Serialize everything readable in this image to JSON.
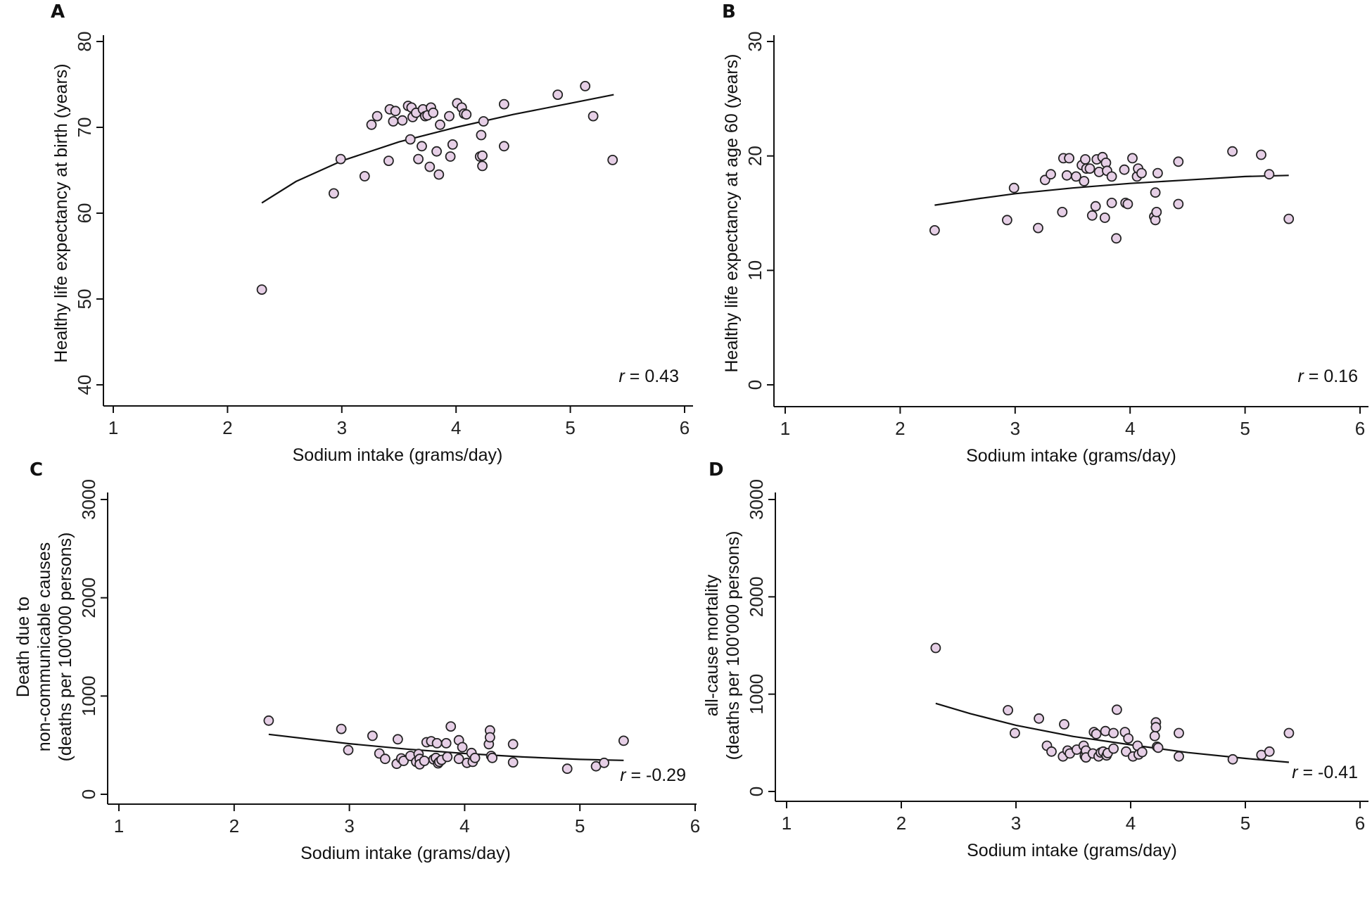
{
  "figure": {
    "panel_letters": [
      "A",
      "B",
      "C",
      "D"
    ]
  },
  "chart_data": [
    {
      "id": "A",
      "type": "scatter",
      "title": "",
      "panel_label": "A",
      "xlabel": "Sodium intake (grams/day)",
      "ylabel": [
        "Healthy life expectancy at birth (years)"
      ],
      "xlim": [
        1,
        6
      ],
      "ylim": [
        40,
        80
      ],
      "xticks": [
        1,
        2,
        3,
        4,
        5,
        6
      ],
      "yticks": [
        40,
        50,
        60,
        70,
        80
      ],
      "grid": false,
      "annotation": {
        "symbol": "r",
        "text": " = 0.43"
      },
      "points": [
        [
          2.3,
          51.1
        ],
        [
          2.93,
          62.3
        ],
        [
          2.99,
          66.3
        ],
        [
          3.2,
          64.3
        ],
        [
          3.26,
          70.3
        ],
        [
          3.31,
          71.3
        ],
        [
          3.41,
          66.1
        ],
        [
          3.42,
          72.1
        ],
        [
          3.45,
          70.7
        ],
        [
          3.47,
          71.9
        ],
        [
          3.53,
          70.8
        ],
        [
          3.58,
          72.5
        ],
        [
          3.6,
          68.6
        ],
        [
          3.61,
          72.3
        ],
        [
          3.62,
          71.2
        ],
        [
          3.65,
          71.7
        ],
        [
          3.67,
          66.3
        ],
        [
          3.7,
          67.8
        ],
        [
          3.71,
          72.1
        ],
        [
          3.73,
          71.3
        ],
        [
          3.75,
          71.4
        ],
        [
          3.77,
          65.4
        ],
        [
          3.78,
          72.3
        ],
        [
          3.8,
          71.7
        ],
        [
          3.83,
          67.2
        ],
        [
          3.85,
          64.5
        ],
        [
          3.86,
          70.3
        ],
        [
          3.94,
          71.3
        ],
        [
          3.95,
          66.6
        ],
        [
          3.97,
          68.0
        ],
        [
          4.01,
          72.8
        ],
        [
          4.05,
          72.3
        ],
        [
          4.07,
          71.6
        ],
        [
          4.09,
          71.5
        ],
        [
          4.21,
          66.6
        ],
        [
          4.22,
          69.1
        ],
        [
          4.23,
          66.7
        ],
        [
          4.23,
          65.5
        ],
        [
          4.24,
          70.7
        ],
        [
          4.42,
          72.7
        ],
        [
          4.42,
          67.8
        ],
        [
          4.89,
          73.8
        ],
        [
          5.13,
          74.8
        ],
        [
          5.2,
          71.3
        ],
        [
          5.37,
          66.2
        ]
      ],
      "fit_line": [
        [
          2.3,
          61.2
        ],
        [
          2.6,
          63.7
        ],
        [
          3.0,
          66.1
        ],
        [
          3.5,
          68.3
        ],
        [
          4.0,
          70.0
        ],
        [
          4.5,
          71.5
        ],
        [
          5.0,
          72.8
        ],
        [
          5.38,
          73.8
        ]
      ]
    },
    {
      "id": "B",
      "type": "scatter",
      "title": "",
      "panel_label": "B",
      "xlabel": "Sodium intake (grams/day)",
      "ylabel": [
        "Healthy life expectancy at age 60 (years)"
      ],
      "xlim": [
        1,
        6
      ],
      "ylim": [
        0,
        30
      ],
      "xticks": [
        1,
        2,
        3,
        4,
        5,
        6
      ],
      "yticks": [
        0,
        10,
        20,
        30
      ],
      "grid": false,
      "annotation": {
        "symbol": "r",
        "text": " = 0.16"
      },
      "points": [
        [
          2.3,
          13.5
        ],
        [
          2.93,
          14.4
        ],
        [
          2.99,
          17.2
        ],
        [
          3.2,
          13.7
        ],
        [
          3.26,
          17.9
        ],
        [
          3.31,
          18.4
        ],
        [
          3.41,
          15.1
        ],
        [
          3.42,
          19.8
        ],
        [
          3.45,
          18.3
        ],
        [
          3.47,
          19.8
        ],
        [
          3.53,
          18.2
        ],
        [
          3.58,
          19.2
        ],
        [
          3.6,
          17.8
        ],
        [
          3.61,
          19.7
        ],
        [
          3.62,
          18.9
        ],
        [
          3.65,
          18.9
        ],
        [
          3.67,
          14.8
        ],
        [
          3.7,
          15.6
        ],
        [
          3.71,
          19.7
        ],
        [
          3.73,
          18.6
        ],
        [
          3.76,
          19.9
        ],
        [
          3.78,
          14.6
        ],
        [
          3.79,
          19.4
        ],
        [
          3.8,
          18.7
        ],
        [
          3.84,
          18.2
        ],
        [
          3.84,
          15.9
        ],
        [
          3.88,
          12.8
        ],
        [
          3.95,
          18.8
        ],
        [
          3.96,
          15.9
        ],
        [
          3.98,
          15.8
        ],
        [
          4.02,
          19.8
        ],
        [
          4.06,
          18.2
        ],
        [
          4.07,
          18.9
        ],
        [
          4.1,
          18.5
        ],
        [
          4.21,
          14.7
        ],
        [
          4.22,
          16.8
        ],
        [
          4.22,
          14.4
        ],
        [
          4.23,
          15.1
        ],
        [
          4.24,
          18.5
        ],
        [
          4.42,
          19.5
        ],
        [
          4.42,
          15.8
        ],
        [
          4.89,
          20.4
        ],
        [
          5.14,
          20.1
        ],
        [
          5.21,
          18.4
        ],
        [
          5.38,
          14.5
        ]
      ],
      "fit_line": [
        [
          2.3,
          15.7
        ],
        [
          2.7,
          16.3
        ],
        [
          3.0,
          16.7
        ],
        [
          3.5,
          17.2
        ],
        [
          4.0,
          17.6
        ],
        [
          4.5,
          17.9
        ],
        [
          5.0,
          18.2
        ],
        [
          5.38,
          18.3
        ]
      ]
    },
    {
      "id": "C",
      "type": "scatter",
      "title": "",
      "panel_label": "C",
      "xlabel": "Sodium intake (grams/day)",
      "ylabel": [
        "Death due to",
        "non-communicable causes",
        "(deaths per 100'000 persons)"
      ],
      "xlim": [
        1,
        6
      ],
      "ylim": [
        0,
        3000
      ],
      "xticks": [
        1,
        2,
        3,
        4,
        5,
        6
      ],
      "yticks": [
        0,
        1000,
        2000,
        3000
      ],
      "grid": false,
      "annotation": {
        "symbol": "r",
        "text": " = -0.29"
      },
      "points": [
        [
          2.3,
          750
        ],
        [
          2.93,
          665
        ],
        [
          2.99,
          450
        ],
        [
          3.2,
          595
        ],
        [
          3.26,
          415
        ],
        [
          3.31,
          360
        ],
        [
          3.41,
          310
        ],
        [
          3.42,
          560
        ],
        [
          3.45,
          365
        ],
        [
          3.47,
          340
        ],
        [
          3.53,
          390
        ],
        [
          3.58,
          330
        ],
        [
          3.6,
          410
        ],
        [
          3.61,
          360
        ],
        [
          3.61,
          305
        ],
        [
          3.65,
          340
        ],
        [
          3.67,
          530
        ],
        [
          3.71,
          540
        ],
        [
          3.73,
          355
        ],
        [
          3.75,
          370
        ],
        [
          3.76,
          520
        ],
        [
          3.77,
          315
        ],
        [
          3.78,
          330
        ],
        [
          3.8,
          350
        ],
        [
          3.84,
          520
        ],
        [
          3.85,
          380
        ],
        [
          3.88,
          690
        ],
        [
          3.95,
          550
        ],
        [
          3.95,
          360
        ],
        [
          3.98,
          480
        ],
        [
          4.02,
          320
        ],
        [
          4.06,
          420
        ],
        [
          4.07,
          330
        ],
        [
          4.09,
          370
        ],
        [
          4.21,
          510
        ],
        [
          4.22,
          650
        ],
        [
          4.22,
          580
        ],
        [
          4.23,
          390
        ],
        [
          4.24,
          370
        ],
        [
          4.42,
          510
        ],
        [
          4.42,
          325
        ],
        [
          4.89,
          260
        ],
        [
          5.14,
          285
        ],
        [
          5.21,
          320
        ],
        [
          5.38,
          545
        ]
      ],
      "fit_line": [
        [
          2.3,
          610
        ],
        [
          2.7,
          555
        ],
        [
          3.0,
          515
        ],
        [
          3.5,
          460
        ],
        [
          4.0,
          415
        ],
        [
          4.5,
          380
        ],
        [
          5.0,
          355
        ],
        [
          5.38,
          345
        ]
      ]
    },
    {
      "id": "D",
      "type": "scatter",
      "title": "",
      "panel_label": "D",
      "xlabel": "Sodium intake (grams/day)",
      "ylabel": [
        "all-cause mortality",
        "(deaths per 100'000 persons)"
      ],
      "xlim": [
        1,
        6
      ],
      "ylim": [
        0,
        3000
      ],
      "xticks": [
        1,
        2,
        3,
        4,
        5,
        6
      ],
      "yticks": [
        0,
        1000,
        2000,
        3000
      ],
      "grid": false,
      "annotation": {
        "symbol": "r",
        "text": " = -0.41"
      },
      "points": [
        [
          2.3,
          1475
        ],
        [
          2.93,
          835
        ],
        [
          2.99,
          600
        ],
        [
          3.2,
          750
        ],
        [
          3.27,
          470
        ],
        [
          3.31,
          410
        ],
        [
          3.41,
          360
        ],
        [
          3.42,
          690
        ],
        [
          3.45,
          420
        ],
        [
          3.47,
          390
        ],
        [
          3.53,
          430
        ],
        [
          3.59,
          470
        ],
        [
          3.6,
          365
        ],
        [
          3.61,
          420
        ],
        [
          3.61,
          350
        ],
        [
          3.67,
          390
        ],
        [
          3.68,
          610
        ],
        [
          3.7,
          590
        ],
        [
          3.72,
          360
        ],
        [
          3.74,
          400
        ],
        [
          3.76,
          410
        ],
        [
          3.78,
          620
        ],
        [
          3.79,
          370
        ],
        [
          3.8,
          395
        ],
        [
          3.85,
          600
        ],
        [
          3.85,
          440
        ],
        [
          3.88,
          840
        ],
        [
          3.95,
          610
        ],
        [
          3.96,
          410
        ],
        [
          3.98,
          545
        ],
        [
          4.02,
          360
        ],
        [
          4.06,
          470
        ],
        [
          4.07,
          380
        ],
        [
          4.1,
          405
        ],
        [
          4.21,
          570
        ],
        [
          4.22,
          710
        ],
        [
          4.22,
          660
        ],
        [
          4.23,
          460
        ],
        [
          4.24,
          450
        ],
        [
          4.42,
          600
        ],
        [
          4.42,
          360
        ],
        [
          4.89,
          330
        ],
        [
          5.14,
          375
        ],
        [
          5.21,
          410
        ],
        [
          5.38,
          600
        ]
      ],
      "fit_line": [
        [
          2.3,
          905
        ],
        [
          2.6,
          800
        ],
        [
          3.0,
          680
        ],
        [
          3.5,
          565
        ],
        [
          4.0,
          480
        ],
        [
          4.5,
          400
        ],
        [
          5.0,
          340
        ],
        [
          5.38,
          300
        ]
      ]
    }
  ]
}
